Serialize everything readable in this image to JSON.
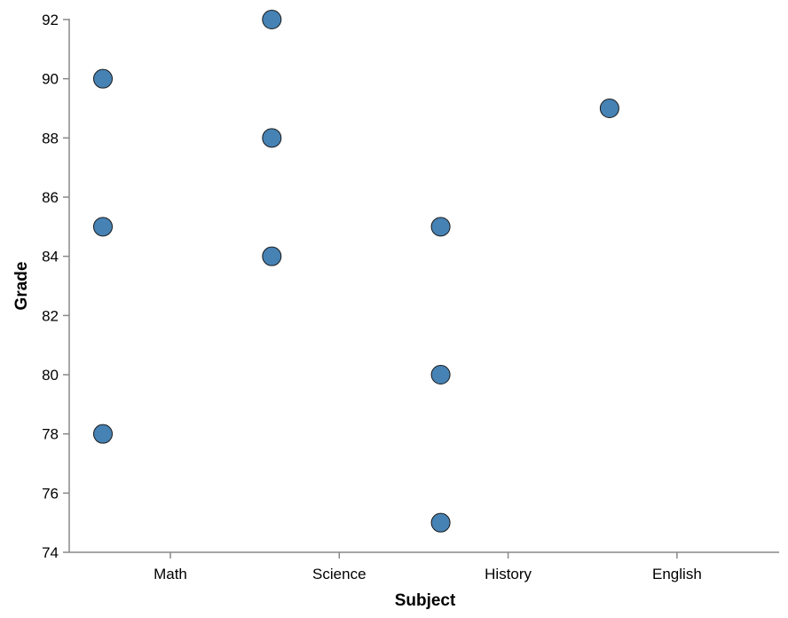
{
  "chart_data": {
    "type": "scatter",
    "xlabel": "Subject",
    "ylabel": "Grade",
    "categories": [
      "Math",
      "Science",
      "History",
      "English"
    ],
    "ylim": [
      74,
      92
    ],
    "yticks": [
      74,
      76,
      78,
      80,
      82,
      84,
      86,
      88,
      90,
      92
    ],
    "grid": false,
    "point_color": "#4682b4",
    "points": [
      {
        "subject": "Math",
        "grade": 85
      },
      {
        "subject": "Math",
        "grade": 90
      },
      {
        "subject": "Math",
        "grade": 78
      },
      {
        "subject": "Science",
        "grade": 92
      },
      {
        "subject": "Science",
        "grade": 88
      },
      {
        "subject": "Science",
        "grade": 84
      },
      {
        "subject": "History",
        "grade": 75
      },
      {
        "subject": "History",
        "grade": 80
      },
      {
        "subject": "History",
        "grade": 85
      },
      {
        "subject": "English",
        "grade": 89
      }
    ]
  }
}
